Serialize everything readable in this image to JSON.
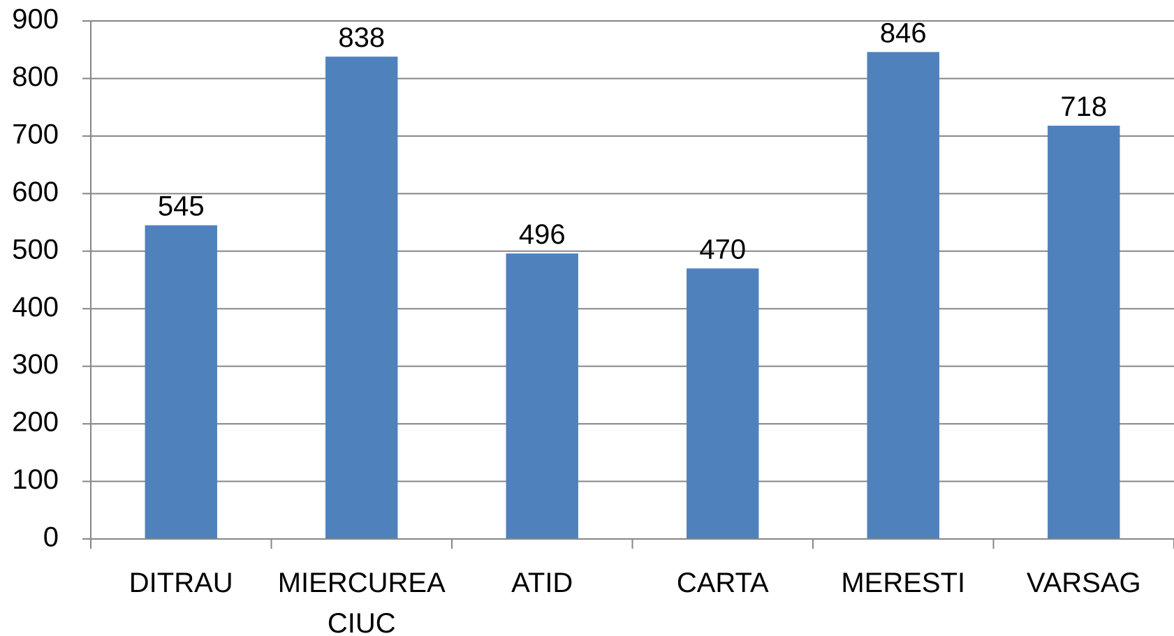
{
  "chart_data": {
    "type": "bar",
    "title": "",
    "xlabel": "",
    "ylabel": "",
    "categories": [
      [
        "DITRAU"
      ],
      [
        "MIERCUREA",
        "CIUC"
      ],
      [
        "ATID"
      ],
      [
        "CARTA"
      ],
      [
        "MERESTI"
      ],
      [
        "VARSAG"
      ]
    ],
    "values": [
      545,
      838,
      496,
      470,
      846,
      718
    ],
    "ylim": [
      0,
      900
    ],
    "yticks": [
      0,
      100,
      200,
      300,
      400,
      500,
      600,
      700,
      800,
      900
    ],
    "grid": true,
    "legend": "none",
    "bar_color": "#4f81bd"
  }
}
